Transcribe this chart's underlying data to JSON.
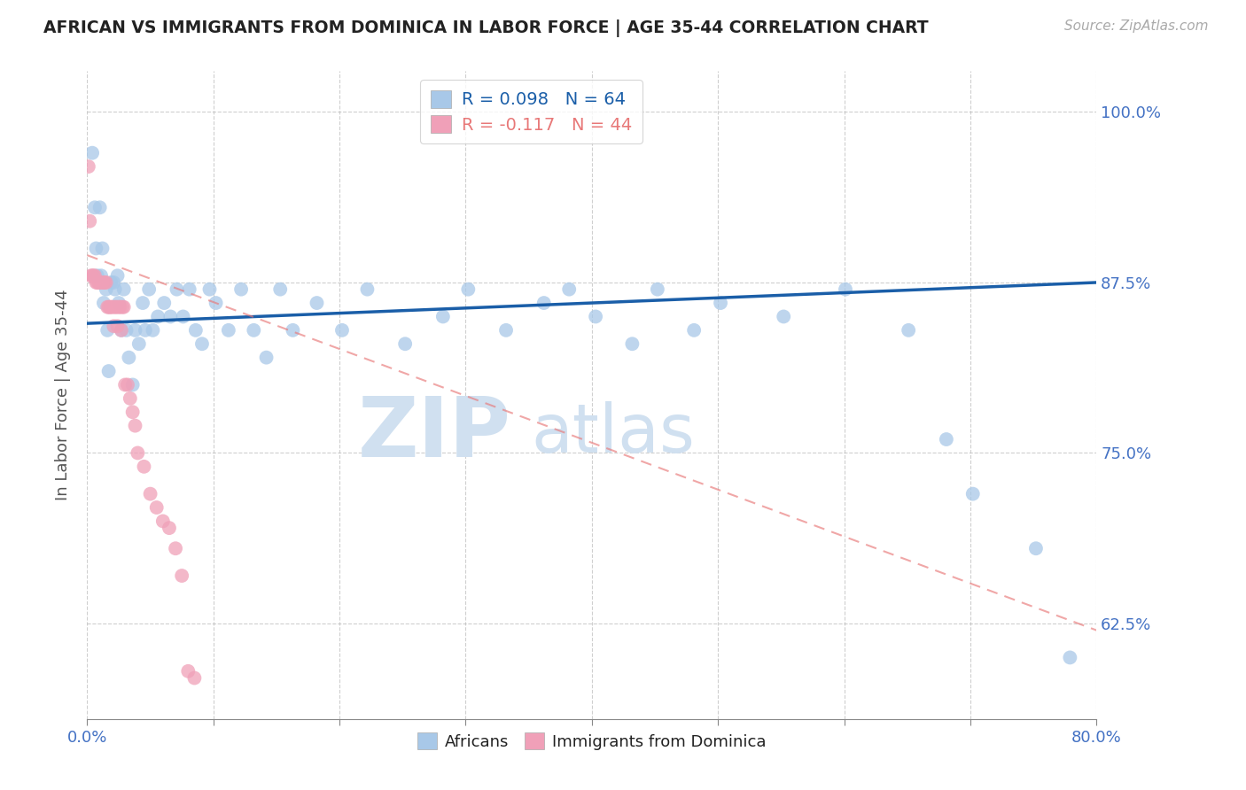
{
  "title": "AFRICAN VS IMMIGRANTS FROM DOMINICA IN LABOR FORCE | AGE 35-44 CORRELATION CHART",
  "source": "Source: ZipAtlas.com",
  "ylabel": "In Labor Force | Age 35-44",
  "ytick_values": [
    0.625,
    0.75,
    0.875,
    1.0
  ],
  "xlim": [
    0.0,
    0.8
  ],
  "ylim": [
    0.555,
    1.03
  ],
  "legend_blue_label": "Africans",
  "legend_pink_label": "Immigrants from Dominica",
  "r_blue": 0.098,
  "n_blue": 64,
  "r_pink": -0.117,
  "n_pink": 44,
  "blue_color": "#A8C8E8",
  "pink_color": "#F0A0B8",
  "line_blue_color": "#1A5EA8",
  "line_pink_color": "#E87878",
  "watermark_color": "#D0E0F0",
  "background_color": "#FFFFFF",
  "title_color": "#222222",
  "axis_label_color": "#4472C4",
  "grid_color": "#BBBBBB",
  "africans_x": [
    0.004,
    0.006,
    0.007,
    0.008,
    0.01,
    0.011,
    0.012,
    0.013,
    0.015,
    0.016,
    0.017,
    0.019,
    0.021,
    0.022,
    0.024,
    0.025,
    0.027,
    0.029,
    0.031,
    0.033,
    0.036,
    0.038,
    0.041,
    0.044,
    0.046,
    0.049,
    0.052,
    0.056,
    0.061,
    0.066,
    0.071,
    0.076,
    0.081,
    0.086,
    0.091,
    0.097,
    0.102,
    0.112,
    0.122,
    0.132,
    0.142,
    0.153,
    0.163,
    0.182,
    0.202,
    0.222,
    0.252,
    0.282,
    0.302,
    0.332,
    0.362,
    0.382,
    0.403,
    0.432,
    0.452,
    0.481,
    0.502,
    0.552,
    0.601,
    0.651,
    0.681,
    0.702,
    0.752,
    0.779
  ],
  "africans_y": [
    0.97,
    0.93,
    0.9,
    0.88,
    0.93,
    0.88,
    0.9,
    0.86,
    0.87,
    0.84,
    0.81,
    0.875,
    0.875,
    0.87,
    0.88,
    0.86,
    0.84,
    0.87,
    0.84,
    0.82,
    0.8,
    0.84,
    0.83,
    0.86,
    0.84,
    0.87,
    0.84,
    0.85,
    0.86,
    0.85,
    0.87,
    0.85,
    0.87,
    0.84,
    0.83,
    0.87,
    0.86,
    0.84,
    0.87,
    0.84,
    0.82,
    0.87,
    0.84,
    0.86,
    0.84,
    0.87,
    0.83,
    0.85,
    0.87,
    0.84,
    0.86,
    0.87,
    0.85,
    0.83,
    0.87,
    0.84,
    0.86,
    0.85,
    0.87,
    0.84,
    0.76,
    0.72,
    0.68,
    0.6
  ],
  "dominica_x": [
    0.001,
    0.002,
    0.003,
    0.004,
    0.005,
    0.006,
    0.007,
    0.008,
    0.009,
    0.01,
    0.011,
    0.012,
    0.013,
    0.014,
    0.015,
    0.016,
    0.017,
    0.018,
    0.019,
    0.02,
    0.021,
    0.022,
    0.023,
    0.024,
    0.025,
    0.026,
    0.027,
    0.028,
    0.029,
    0.03,
    0.032,
    0.034,
    0.036,
    0.038,
    0.04,
    0.045,
    0.05,
    0.055,
    0.06,
    0.065,
    0.07,
    0.075,
    0.08,
    0.085
  ],
  "dominica_y": [
    0.96,
    0.92,
    0.88,
    0.88,
    0.88,
    0.88,
    0.875,
    0.875,
    0.875,
    0.875,
    0.875,
    0.875,
    0.875,
    0.875,
    0.875,
    0.857,
    0.857,
    0.857,
    0.857,
    0.857,
    0.843,
    0.857,
    0.857,
    0.843,
    0.857,
    0.857,
    0.84,
    0.857,
    0.857,
    0.8,
    0.8,
    0.79,
    0.78,
    0.77,
    0.75,
    0.74,
    0.72,
    0.71,
    0.7,
    0.695,
    0.68,
    0.66,
    0.59,
    0.585
  ],
  "blue_trend_x": [
    0.0,
    0.8
  ],
  "blue_trend_y": [
    0.845,
    0.875
  ],
  "pink_trend_x": [
    0.0,
    0.8
  ],
  "pink_trend_y": [
    0.895,
    0.62
  ]
}
